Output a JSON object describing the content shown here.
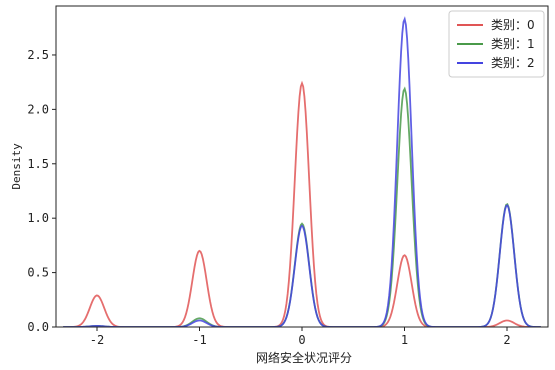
{
  "chart_data": {
    "type": "line",
    "title": "",
    "xlabel": "网络安全状况评分",
    "ylabel": "Density",
    "xlim": [
      -2.4,
      2.4
    ],
    "ylim": [
      0,
      2.95
    ],
    "xticks": [
      -2,
      -1,
      0,
      1,
      2
    ],
    "xtick_labels": [
      "-2",
      "-1",
      "0",
      "1",
      "2"
    ],
    "yticks": [
      0.0,
      0.5,
      1.0,
      1.5,
      2.0,
      2.5
    ],
    "ytick_labels": [
      "0.0",
      "0.5",
      "1.0",
      "1.5",
      "2.0",
      "2.5"
    ],
    "grid": false,
    "legend_position": "top-right",
    "bandwidth": 0.07,
    "series": [
      {
        "name": "类别：0",
        "color": "#e05555",
        "peaks": [
          {
            "x": -2,
            "density": 0.29
          },
          {
            "x": -1,
            "density": 0.7
          },
          {
            "x": 0,
            "density": 2.24
          },
          {
            "x": 1,
            "density": 0.66
          },
          {
            "x": 2,
            "density": 0.06
          }
        ]
      },
      {
        "name": "类别：1",
        "color": "#4a9a4a",
        "peaks": [
          {
            "x": -2,
            "density": 0.01
          },
          {
            "x": -1,
            "density": 0.08
          },
          {
            "x": 0,
            "density": 0.95
          },
          {
            "x": 1,
            "density": 2.19
          },
          {
            "x": 2,
            "density": 1.13
          }
        ]
      },
      {
        "name": "类别：2",
        "color": "#4444e0",
        "peaks": [
          {
            "x": -2,
            "density": 0.01
          },
          {
            "x": -1,
            "density": 0.06
          },
          {
            "x": 0,
            "density": 0.93
          },
          {
            "x": 1,
            "density": 2.83
          },
          {
            "x": 2,
            "density": 1.12
          }
        ]
      }
    ]
  }
}
